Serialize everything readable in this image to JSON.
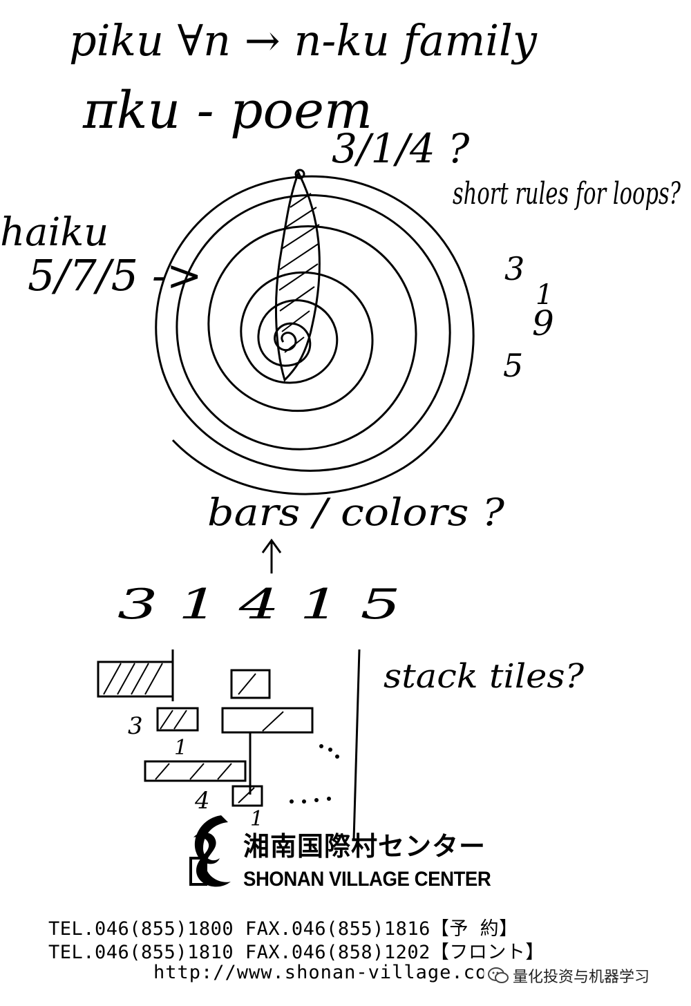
{
  "notes": {
    "line1": "piku ∀n → n-ku family",
    "line2": "πku - poem",
    "digits_top": "3/1/4 ?",
    "haiku": "haiku",
    "haiku_ratio": "5/7/5 ->",
    "short_rules": "short rules for loops?",
    "side_3": "3",
    "side_1": "1",
    "side_9": "9",
    "side_5": "5",
    "bars_colors": "bars / colors ?",
    "digits_row": "3  1  4  1  5",
    "stack_tiles": "stack tiles?",
    "tile_3": "3",
    "tile_1": "1",
    "tile_4": "4",
    "tile_1b": "1"
  },
  "logo": {
    "name_jp": "湘南国際村センター",
    "name_en": "SHONAN VILLAGE CENTER"
  },
  "footer": {
    "line1": "TEL.046(855)1800  FAX.046(855)1816【予   約】",
    "line2": "TEL.046(855)1810  FAX.046(858)1202【フロント】",
    "url": "http://www.shonan-village.co"
  },
  "watermark": {
    "text": "量化投资与机器学习",
    "icon": "wechat-icon"
  }
}
